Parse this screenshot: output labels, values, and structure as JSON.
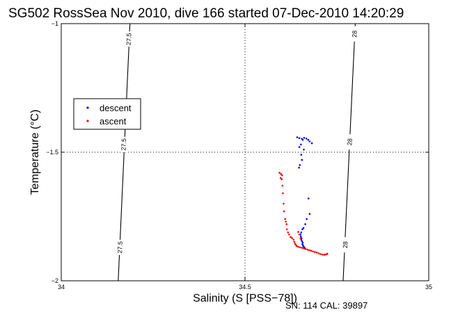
{
  "chart_data": {
    "type": "scatter",
    "title": "SG502 RossSea Nov 2010, dive 166 started 07-Dec-2010 14:20:29",
    "xlabel": "Salinity (S [PSS−78])",
    "ylabel": "Temperature (°C)",
    "xlim": [
      34,
      35
    ],
    "ylim": [
      -2,
      -1
    ],
    "x_ticks": [
      34,
      34.5,
      35
    ],
    "y_ticks": [
      -2,
      -1.5,
      -1
    ],
    "x_tick_labels": [
      "34",
      "34.5",
      "35"
    ],
    "y_tick_labels": [
      "−2",
      "−1.5",
      "−1"
    ],
    "grid": "dotted at x=34.5 and y=-1.5",
    "legend_position": "left",
    "footer": "SN: 114  CAL: 39897",
    "isopycnals": [
      {
        "label": "27.5",
        "points": [
          [
            34.187,
            -1
          ],
          [
            34.155,
            -2
          ]
        ],
        "label_positions": [
          [
            34.184,
            -1.06
          ],
          [
            34.17,
            -1.47
          ],
          [
            34.16,
            -1.87
          ]
        ]
      },
      {
        "label": "28",
        "points": [
          [
            34.8,
            -1
          ],
          [
            34.767,
            -2
          ]
        ],
        "label_positions": [
          [
            34.798,
            -1.04
          ],
          [
            34.785,
            -1.46
          ],
          [
            34.773,
            -1.86
          ]
        ]
      }
    ],
    "series": [
      {
        "name": "descent",
        "color": "#0000ff",
        "marker": "dot",
        "points": [
          [
            34.642,
            -1.442
          ],
          [
            34.648,
            -1.445
          ],
          [
            34.655,
            -1.448
          ],
          [
            34.661,
            -1.444
          ],
          [
            34.667,
            -1.447
          ],
          [
            34.672,
            -1.452
          ],
          [
            34.676,
            -1.458
          ],
          [
            34.682,
            -1.465
          ],
          [
            34.657,
            -1.452
          ],
          [
            34.652,
            -1.47
          ],
          [
            34.648,
            -1.48
          ],
          [
            34.66,
            -1.49
          ],
          [
            34.653,
            -1.51
          ],
          [
            34.655,
            -1.53
          ],
          [
            34.649,
            -1.55
          ],
          [
            34.647,
            -1.56
          ],
          [
            34.673,
            -1.68
          ],
          [
            34.676,
            -1.74
          ],
          [
            34.668,
            -1.76
          ],
          [
            34.664,
            -1.78
          ],
          [
            34.659,
            -1.795
          ],
          [
            34.656,
            -1.8
          ],
          [
            34.653,
            -1.812
          ],
          [
            34.651,
            -1.82
          ],
          [
            34.652,
            -1.828
          ],
          [
            34.654,
            -1.835
          ],
          [
            34.653,
            -1.84
          ],
          [
            34.655,
            -1.846
          ],
          [
            34.657,
            -1.852
          ],
          [
            34.656,
            -1.858
          ],
          [
            34.658,
            -1.863
          ],
          [
            34.66,
            -1.868
          ],
          [
            34.662,
            -1.872
          ],
          [
            34.664,
            -1.876
          ],
          [
            34.66,
            -1.872
          ]
        ]
      },
      {
        "name": "ascent",
        "color": "#ff0000",
        "marker": "dot",
        "points": [
          [
            34.594,
            -1.58
          ],
          [
            34.598,
            -1.585
          ],
          [
            34.601,
            -1.59
          ],
          [
            34.597,
            -1.6
          ],
          [
            34.6,
            -1.605
          ],
          [
            34.602,
            -1.63
          ],
          [
            34.603,
            -1.66
          ],
          [
            34.605,
            -1.7
          ],
          [
            34.606,
            -1.73
          ],
          [
            34.609,
            -1.76
          ],
          [
            34.611,
            -1.77
          ],
          [
            34.613,
            -1.78
          ],
          [
            34.614,
            -1.8
          ],
          [
            34.617,
            -1.812
          ],
          [
            34.62,
            -1.82
          ],
          [
            34.624,
            -1.83
          ],
          [
            34.628,
            -1.834
          ],
          [
            34.632,
            -1.84
          ],
          [
            34.634,
            -1.848
          ],
          [
            34.636,
            -1.855
          ],
          [
            34.638,
            -1.86
          ],
          [
            34.641,
            -1.865
          ],
          [
            34.645,
            -1.868
          ],
          [
            34.65,
            -1.87
          ],
          [
            34.655,
            -1.872
          ],
          [
            34.66,
            -1.874
          ],
          [
            34.665,
            -1.876
          ],
          [
            34.67,
            -1.879
          ],
          [
            34.675,
            -1.881
          ],
          [
            34.68,
            -1.883
          ],
          [
            34.685,
            -1.886
          ],
          [
            34.69,
            -1.888
          ],
          [
            34.695,
            -1.89
          ],
          [
            34.7,
            -1.893
          ],
          [
            34.705,
            -1.896
          ],
          [
            34.71,
            -1.898
          ],
          [
            34.715,
            -1.899
          ],
          [
            34.719,
            -1.898
          ],
          [
            34.722,
            -1.897
          ],
          [
            34.724,
            -1.895
          ],
          [
            34.645,
            -1.81
          ],
          [
            34.648,
            -1.82
          ],
          [
            34.651,
            -1.835
          ]
        ]
      }
    ]
  }
}
